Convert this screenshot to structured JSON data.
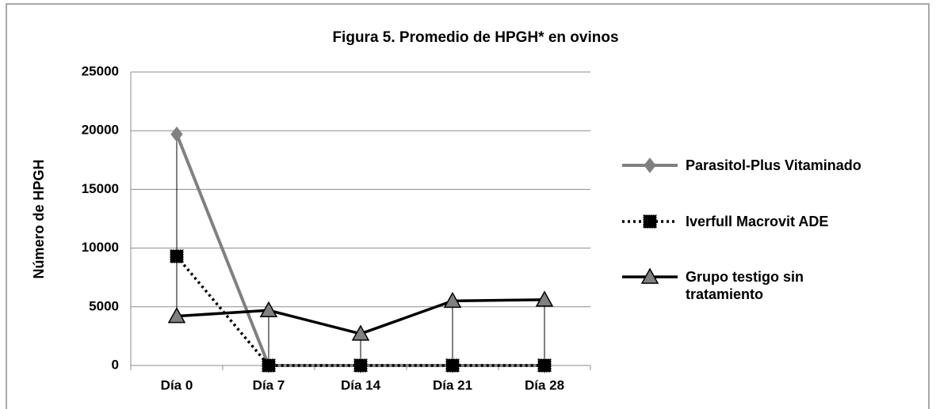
{
  "chart_data": {
    "type": "line",
    "title": "Figura 5. Promedio de HPGH*  en ovinos",
    "y_label": "Número de HPGH",
    "categories": [
      "Día 0",
      "Día 7",
      "Día 14",
      "Día 21",
      "Día 28"
    ],
    "series": [
      {
        "name": "Parasitol-Plus Vitaminado",
        "color": "#808080",
        "marker": "diamond",
        "line_style": "solid",
        "values": [
          19700,
          0,
          0,
          0,
          0
        ]
      },
      {
        "name": "Iverfull Macrovit ADE",
        "color": "#000000",
        "marker": "square",
        "line_style": "dotted",
        "values": [
          9300,
          0,
          0,
          0,
          0
        ]
      },
      {
        "name": "Grupo testigo sin tratamiento",
        "color": "#000000",
        "marker": "triangle",
        "line_style": "solid",
        "values": [
          4200,
          4700,
          2700,
          5500,
          5600
        ]
      }
    ],
    "ylim": [
      0,
      25000
    ],
    "yticks": [
      0,
      5000,
      10000,
      15000,
      20000,
      25000
    ],
    "grid": true,
    "drop_lines": true,
    "legend": "right"
  }
}
